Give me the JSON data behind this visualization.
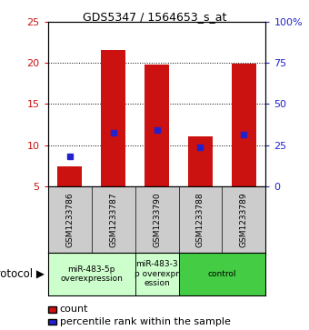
{
  "title": "GDS5347 / 1564653_s_at",
  "samples": [
    "GSM1233786",
    "GSM1233787",
    "GSM1233790",
    "GSM1233788",
    "GSM1233789"
  ],
  "bar_values": [
    7.4,
    21.5,
    19.8,
    11.1,
    19.9
  ],
  "bar_bottom": 5.0,
  "percentile_values": [
    8.7,
    11.5,
    11.8,
    9.7,
    11.3
  ],
  "ylim_left": [
    5,
    25
  ],
  "ylim_right": [
    0,
    100
  ],
  "yticks_left": [
    5,
    10,
    15,
    20,
    25
  ],
  "yticks_right": [
    0,
    25,
    50,
    75,
    100
  ],
  "ytick_labels_right": [
    "0",
    "25",
    "50",
    "75",
    "100%"
  ],
  "bar_color": "#cc1111",
  "percentile_color": "#2222cc",
  "bar_width": 0.55,
  "group_boxes": [
    {
      "xstart": 0.5,
      "xend": 2.5,
      "label": "miR-483-5p\noverexpression",
      "color": "#ccffcc"
    },
    {
      "xstart": 2.5,
      "xend": 3.5,
      "label": "miR-483-3\np overexpr\nession",
      "color": "#ccffcc"
    },
    {
      "xstart": 3.5,
      "xend": 5.5,
      "label": "control",
      "color": "#44cc44"
    }
  ],
  "protocol_label": "protocol",
  "legend_count_label": "count",
  "legend_percentile_label": "percentile rank within the sample",
  "background_color": "#ffffff",
  "label_color_left": "#cc1111",
  "label_color_right": "#2222cc",
  "sample_bg_color": "#cccccc",
  "title_fontsize": 9,
  "tick_fontsize": 8,
  "sample_fontsize": 6.5,
  "proto_fontsize": 6.5,
  "legend_fontsize": 8
}
